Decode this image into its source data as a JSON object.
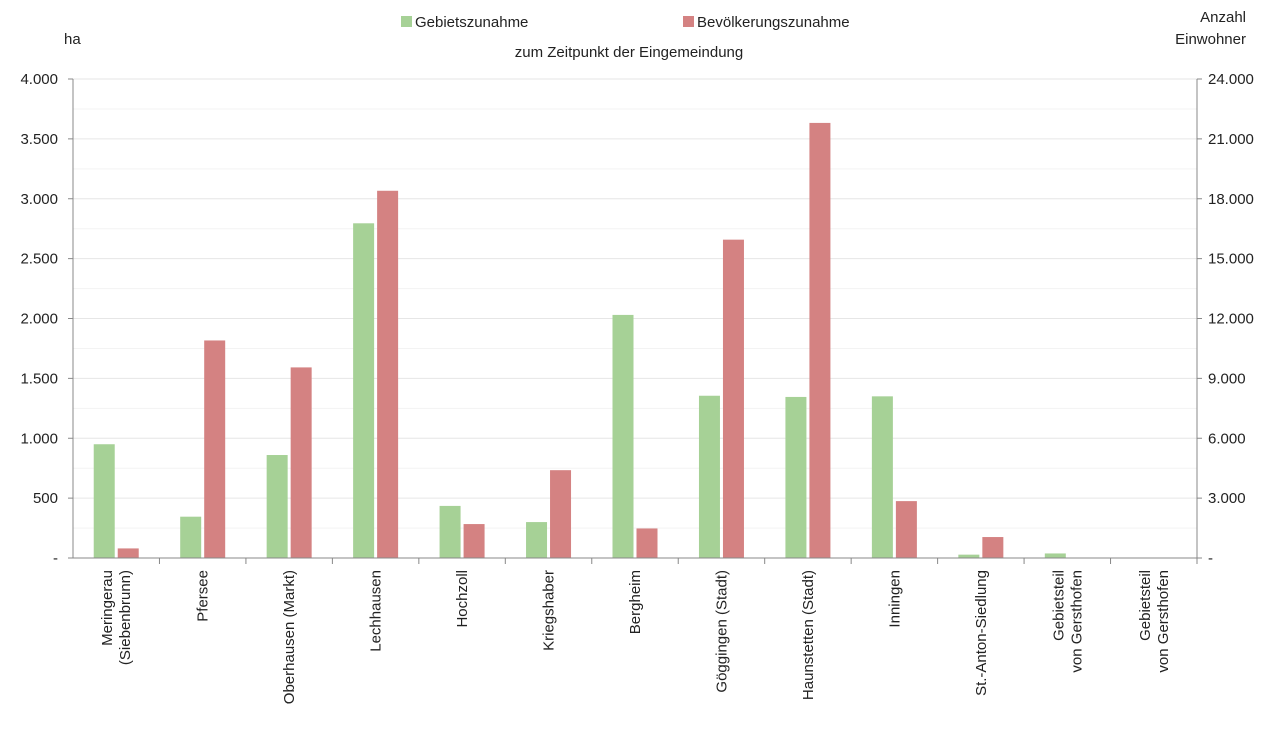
{
  "chart_data": {
    "type": "bar",
    "subtitle": "zum Zeitpunkt der Eingemeindung",
    "left_axis_label": "ha",
    "right_axis_label": [
      "Anzahl",
      "Einwohner"
    ],
    "left_ylim": [
      0,
      4000
    ],
    "right_ylim": [
      0,
      24000
    ],
    "left_ticks": [
      "-",
      "500",
      "1.000",
      "1.500",
      "2.000",
      "2.500",
      "3.000",
      "3.500",
      "4.000"
    ],
    "right_ticks": [
      "-",
      "3.000",
      "6.000",
      "9.000",
      "12.000",
      "15.000",
      "18.000",
      "21.000",
      "24.000"
    ],
    "grid": true,
    "legend_position": "top",
    "categories": [
      [
        "Meringerau",
        "(Siebenbrunn)"
      ],
      [
        "Pfersee"
      ],
      [
        "Oberhausen (Markt)"
      ],
      [
        "Lechhausen"
      ],
      [
        "Hochzoll"
      ],
      [
        "Kriegshaber"
      ],
      [
        "Bergheim"
      ],
      [
        "Göggingen (Stadt)"
      ],
      [
        "Haunstetten (Stadt)"
      ],
      [
        "Inningen"
      ],
      [
        "St.-Anton-Siedlung"
      ],
      [
        "Gebietsteil",
        "von Gersthofen"
      ],
      [
        "Gebietsteil",
        "von Gersthofen"
      ]
    ],
    "series": [
      {
        "name": "Gebietszunahme",
        "axis": "left",
        "color": "#a6d196",
        "values": [
          950,
          345,
          860,
          2795,
          435,
          300,
          2030,
          1355,
          1345,
          1350,
          28,
          38,
          0
        ]
      },
      {
        "name": "Bevölkerungszunahme",
        "axis": "right",
        "color": "#d48282",
        "values": [
          480,
          10900,
          9550,
          18400,
          1700,
          4400,
          1480,
          15950,
          21800,
          2850,
          1050,
          0,
          0
        ]
      }
    ]
  }
}
